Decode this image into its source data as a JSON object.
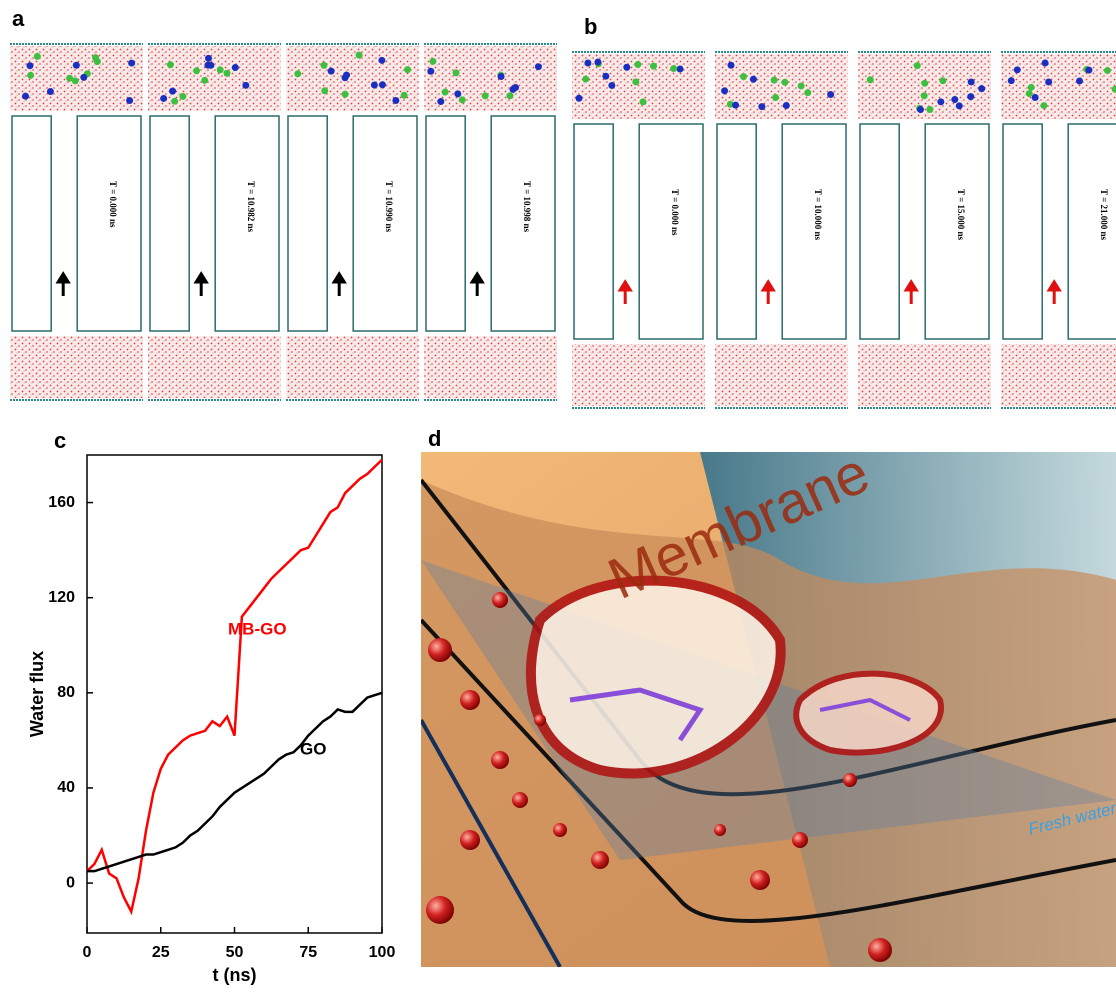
{
  "panels": {
    "a": {
      "label": "a",
      "times": [
        "T = 0.000 ns",
        "T = 10.982 ns",
        "T = 10.990 ns",
        "T = 10.998 ns"
      ]
    },
    "b": {
      "label": "b",
      "times": [
        "T = 0.000 ns",
        "T = 10.000 ns",
        "T = 15.000 ns",
        "T = 21.000 ns"
      ]
    },
    "c": {
      "label": "c"
    },
    "d": {
      "label": "d",
      "texts": [
        "Membrane",
        "Fresh water"
      ]
    }
  },
  "chart_data": {
    "type": "line",
    "xlabel": "t (ns)",
    "ylabel": "Water flux",
    "xlim": [
      0,
      100
    ],
    "ylim": [
      -21,
      180
    ],
    "xticks": [
      0,
      25,
      50,
      75,
      100
    ],
    "yticks": [
      0,
      40,
      80,
      120,
      160
    ],
    "x": [
      0,
      2.5,
      5,
      7.5,
      10,
      12.5,
      15,
      17.5,
      20,
      22.5,
      25,
      27.5,
      30,
      32.5,
      35,
      37.5,
      40,
      42.5,
      45,
      47.5,
      50,
      52.5,
      55,
      57.5,
      60,
      62.5,
      65,
      67.5,
      70,
      72.5,
      75,
      77.5,
      80,
      82.5,
      85,
      87.5,
      90,
      92.5,
      95,
      97.5,
      100
    ],
    "series": [
      {
        "name": "MB-GO",
        "color": "#ff0000",
        "values": [
          5,
          8,
          14,
          4,
          2,
          -6,
          -12,
          2,
          22,
          38,
          48,
          54,
          57,
          60,
          62,
          63,
          64,
          68,
          66,
          70,
          62,
          112,
          116,
          120,
          124,
          128,
          131,
          134,
          137,
          140,
          141,
          146,
          151,
          156,
          158,
          164,
          167,
          170,
          172,
          175,
          178
        ]
      },
      {
        "name": "GO",
        "color": "#000000",
        "values": [
          5,
          5,
          6,
          7,
          8,
          9,
          10,
          11,
          12,
          12,
          13,
          14,
          15,
          17,
          20,
          22,
          25,
          28,
          32,
          35,
          38,
          40,
          42,
          44,
          46,
          49,
          52,
          54,
          55,
          58,
          62,
          65,
          68,
          70,
          73,
          72,
          72,
          75,
          78,
          79,
          80
        ]
      }
    ]
  }
}
